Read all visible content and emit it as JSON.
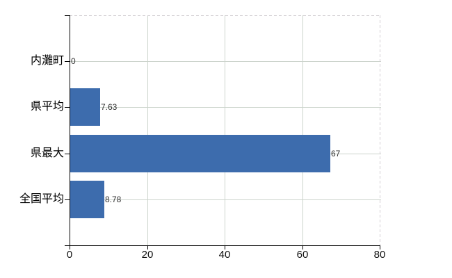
{
  "chart_data": {
    "type": "bar",
    "orientation": "horizontal",
    "title": "",
    "xlabel": "",
    "ylabel": "",
    "categories": [
      "内灘町",
      "県平均",
      "県最大",
      "全国平均"
    ],
    "values": [
      0,
      7.63,
      67,
      8.78
    ],
    "value_labels": [
      "0",
      "7.63",
      "67",
      "8.78"
    ],
    "x_ticks": [
      0,
      20,
      40,
      60,
      80
    ],
    "x_tick_labels": [
      "0",
      "20",
      "40",
      "60",
      "80"
    ],
    "xlim": [
      0,
      80
    ],
    "grid": true,
    "legend": false,
    "colors": {
      "bar": "#3d6cad",
      "gridline": "#ccd4cc",
      "dashed_border": "#d2ced2",
      "axis": "#000000",
      "value_label": "#333333",
      "tick_label": "#111111",
      "category_label": "#000000",
      "background": "#ffffff"
    }
  }
}
